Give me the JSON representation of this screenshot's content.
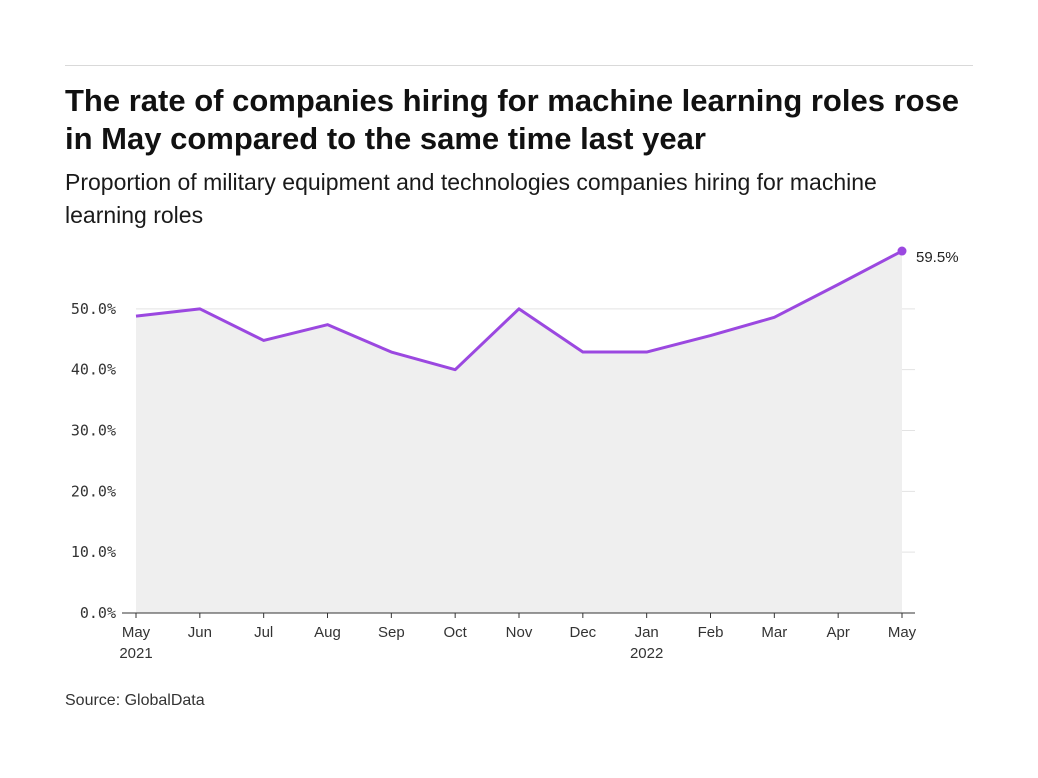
{
  "header": {
    "title": "The rate of companies hiring for machine learning roles rose in May compared to the same time last year",
    "subtitle": "Proportion of military equipment and technologies companies hiring for machine learning roles"
  },
  "footer": {
    "source": "Source: GlobalData"
  },
  "colors": {
    "line": "#9b48e0",
    "area": "#efefef",
    "grid": "#e3e3e3",
    "axis": "#333333"
  },
  "chart_data": {
    "type": "area",
    "categories": [
      "May",
      "Jun",
      "Jul",
      "Aug",
      "Sep",
      "Oct",
      "Nov",
      "Dec",
      "Jan",
      "Feb",
      "Mar",
      "Apr",
      "May"
    ],
    "year_labels": [
      "2021",
      "",
      "",
      "",
      "",
      "",
      "",
      "",
      "2022",
      "",
      "",
      "",
      ""
    ],
    "series": [
      {
        "values": [
          48.8,
          50.0,
          44.8,
          47.4,
          42.9,
          40.0,
          50.0,
          42.9,
          42.9,
          45.6,
          48.6,
          54.0,
          59.5
        ]
      }
    ],
    "ylim": [
      0,
      60
    ],
    "yticks": [
      0,
      10,
      20,
      30,
      40,
      50
    ],
    "ytick_labels": [
      "0.0%",
      "10.0%",
      "20.0%",
      "30.0%",
      "40.0%",
      "50.0%"
    ],
    "end_label": "59.5%",
    "grid": true,
    "xlabel": "",
    "ylabel": ""
  }
}
